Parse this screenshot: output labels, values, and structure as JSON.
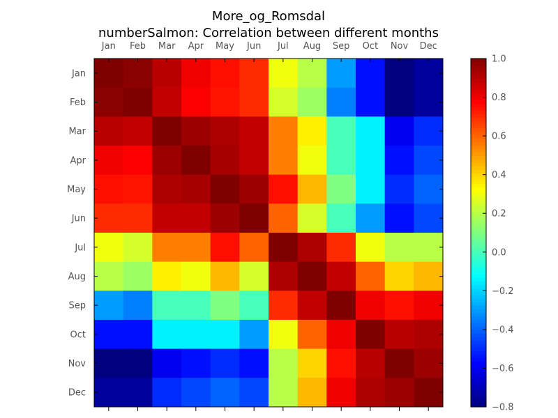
{
  "chart_data": {
    "type": "heatmap",
    "title": "More_og_Romsdal",
    "subtitle": "numberSalmon: Correlation between different months",
    "x_categories": [
      "Jan",
      "Feb",
      "Mar",
      "Apr",
      "May",
      "Jun",
      "Jul",
      "Aug",
      "Sep",
      "Oct",
      "Nov",
      "Dec"
    ],
    "y_categories": [
      "Jan",
      "Feb",
      "Mar",
      "Apr",
      "May",
      "Jun",
      "Jul",
      "Aug",
      "Sep",
      "Oct",
      "Nov",
      "Dec"
    ],
    "values": [
      [
        1.0,
        0.98,
        0.9,
        0.8,
        0.75,
        0.7,
        0.3,
        0.2,
        -0.3,
        -0.55,
        -0.8,
        -0.75
      ],
      [
        0.98,
        1.0,
        0.88,
        0.78,
        0.74,
        0.7,
        0.25,
        0.15,
        -0.35,
        -0.55,
        -0.8,
        -0.75
      ],
      [
        0.9,
        0.88,
        1.0,
        0.95,
        0.92,
        0.88,
        0.55,
        0.35,
        0.0,
        -0.15,
        -0.6,
        -0.5
      ],
      [
        0.8,
        0.78,
        0.95,
        1.0,
        0.93,
        0.88,
        0.55,
        0.3,
        0.0,
        -0.15,
        -0.55,
        -0.45
      ],
      [
        0.75,
        0.74,
        0.92,
        0.93,
        1.0,
        0.95,
        0.75,
        0.45,
        0.1,
        -0.15,
        -0.5,
        -0.4
      ],
      [
        0.7,
        0.7,
        0.88,
        0.88,
        0.95,
        1.0,
        0.6,
        0.25,
        0.0,
        -0.3,
        -0.55,
        -0.45
      ],
      [
        0.3,
        0.25,
        0.55,
        0.55,
        0.75,
        0.6,
        1.0,
        0.92,
        0.7,
        0.3,
        0.2,
        0.2
      ],
      [
        0.2,
        0.15,
        0.35,
        0.3,
        0.45,
        0.25,
        0.92,
        1.0,
        0.88,
        0.6,
        0.4,
        0.45
      ],
      [
        -0.3,
        -0.35,
        0.0,
        0.0,
        0.1,
        0.0,
        0.7,
        0.88,
        1.0,
        0.8,
        0.75,
        0.8
      ],
      [
        -0.55,
        -0.55,
        -0.15,
        -0.15,
        -0.15,
        -0.3,
        0.3,
        0.6,
        0.8,
        1.0,
        0.9,
        0.92
      ],
      [
        -0.8,
        -0.8,
        -0.6,
        -0.55,
        -0.5,
        -0.55,
        0.2,
        0.4,
        0.75,
        0.9,
        1.0,
        0.95
      ],
      [
        -0.75,
        -0.75,
        -0.5,
        -0.45,
        -0.4,
        -0.45,
        0.2,
        0.45,
        0.8,
        0.92,
        0.95,
        1.0
      ]
    ],
    "colormap": "jet",
    "vmin": -0.8,
    "vmax": 1.0,
    "colorbar_ticks": [
      "1.0",
      "0.8",
      "0.6",
      "0.4",
      "0.2",
      "0.0",
      "−0.2",
      "−0.4",
      "−0.6",
      "−0.8"
    ],
    "colorbar_tick_values": [
      1.0,
      0.8,
      0.6,
      0.4,
      0.2,
      0.0,
      -0.2,
      -0.4,
      -0.6,
      -0.8
    ],
    "x_tick_position": "top",
    "y_tick_position": "left",
    "grid": true,
    "legend": "colorbar-right"
  }
}
